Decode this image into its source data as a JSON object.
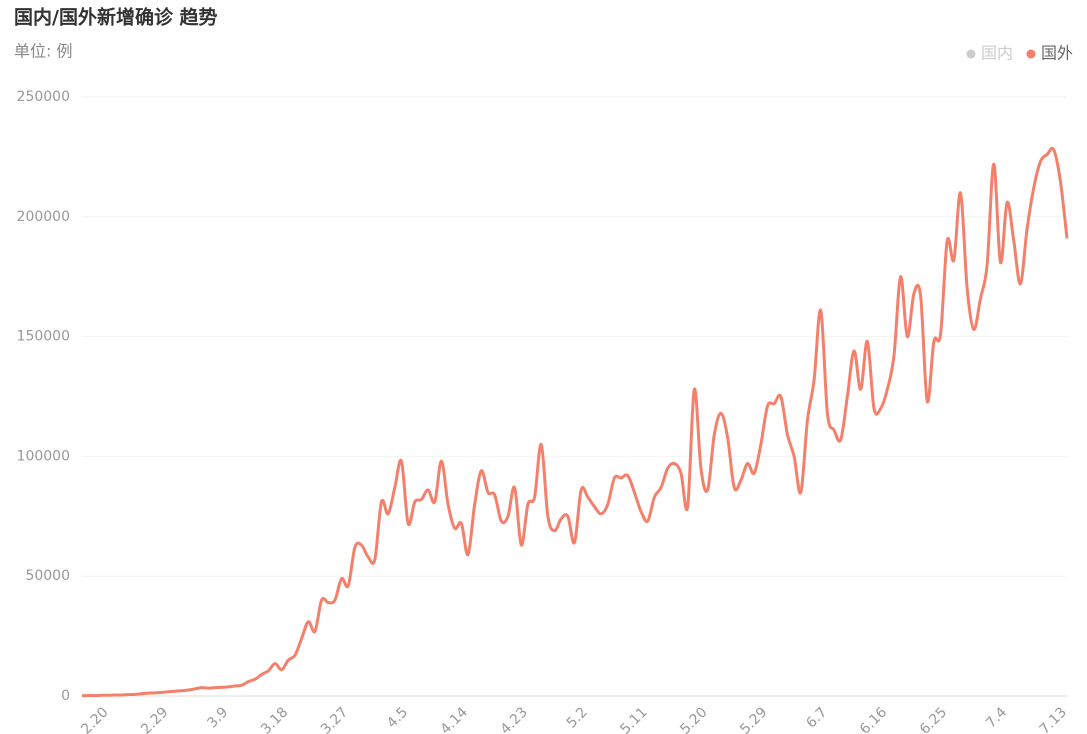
{
  "chart_data": {
    "type": "line",
    "title": "国内/国外新增确诊 趋势",
    "subtitle": "单位: 例",
    "categories": [
      null,
      null,
      null,
      "2.20",
      null,
      null,
      null,
      null,
      null,
      null,
      null,
      null,
      "2.29",
      null,
      null,
      null,
      null,
      null,
      null,
      null,
      null,
      "3.9",
      null,
      null,
      null,
      null,
      null,
      null,
      null,
      null,
      "3.18",
      null,
      null,
      null,
      null,
      null,
      null,
      null,
      null,
      "3.27",
      null,
      null,
      null,
      null,
      null,
      null,
      null,
      null,
      "4.5",
      null,
      null,
      null,
      null,
      null,
      null,
      null,
      null,
      "4.14",
      null,
      null,
      null,
      null,
      null,
      null,
      null,
      null,
      "4.23",
      null,
      null,
      null,
      null,
      null,
      null,
      null,
      null,
      "5.2",
      null,
      null,
      null,
      null,
      null,
      null,
      null,
      null,
      "5.11",
      null,
      null,
      null,
      null,
      null,
      null,
      null,
      null,
      "5.20",
      null,
      null,
      null,
      null,
      null,
      null,
      null,
      null,
      "5.29",
      null,
      null,
      null,
      null,
      null,
      null,
      null,
      null,
      "6.7",
      null,
      null,
      null,
      null,
      null,
      null,
      null,
      null,
      "6.16",
      null,
      null,
      null,
      null,
      null,
      null,
      null,
      null,
      "6.25",
      null,
      null,
      null,
      null,
      null,
      null,
      null,
      null,
      "7.4",
      null,
      null,
      null,
      null,
      null,
      null,
      null,
      null,
      "7.13",
      null
    ],
    "series": [
      {
        "name": "国内",
        "color": "#cccccc",
        "visible": false,
        "values": [
          null,
          null,
          null,
          null,
          null,
          null,
          null,
          null,
          null,
          null,
          null,
          null,
          null,
          null,
          null,
          null,
          null,
          null,
          null,
          null,
          null,
          null,
          null,
          null,
          null,
          null,
          null,
          null,
          null,
          null,
          null,
          null,
          null,
          null,
          null,
          null,
          null,
          null,
          null,
          null,
          null,
          null,
          null,
          null,
          null,
          null,
          null,
          null,
          null,
          null,
          null,
          null,
          null,
          null,
          null,
          null,
          null,
          null,
          null,
          null,
          null,
          null,
          null,
          null,
          null,
          null,
          null,
          null,
          null,
          null,
          null,
          null,
          null,
          null,
          null,
          null,
          null,
          null,
          null,
          null,
          null,
          null,
          null,
          null,
          null,
          null,
          null,
          null,
          null,
          null,
          null,
          null,
          null,
          null,
          null,
          null,
          null,
          null,
          null,
          null,
          null,
          null,
          null,
          null,
          null,
          null,
          null,
          null,
          null,
          null,
          null,
          null,
          null,
          null,
          null,
          null,
          null,
          null,
          null,
          null,
          null,
          null,
          null,
          null,
          null,
          null,
          null,
          null,
          null,
          null,
          null,
          null,
          null,
          null,
          null,
          null,
          null,
          null,
          null,
          null,
          null,
          null,
          null,
          null,
          null,
          null,
          null,
          null,
          null
        ]
      },
      {
        "name": "国外",
        "color": "#f4806c",
        "visible": true,
        "values": [
          100,
          200,
          150,
          300,
          300,
          400,
          400,
          600,
          700,
          1000,
          1200,
          1300,
          1500,
          1800,
          2000,
          2200,
          2500,
          3000,
          3500,
          3300,
          3500,
          3600,
          3800,
          4200,
          4500,
          6000,
          7000,
          9000,
          10500,
          13500,
          11000,
          15000,
          17000,
          24000,
          31000,
          27000,
          40000,
          39000,
          40000,
          49000,
          46000,
          62000,
          63000,
          58000,
          57000,
          81000,
          76000,
          87000,
          98000,
          72000,
          81000,
          82000,
          86000,
          81000,
          98000,
          80000,
          70000,
          72000,
          59000,
          80000,
          94000,
          85000,
          84000,
          73000,
          75000,
          87000,
          63000,
          80000,
          83000,
          105000,
          75000,
          69000,
          74000,
          75000,
          64000,
          86000,
          83000,
          79000,
          76000,
          80000,
          91000,
          91000,
          92000,
          85000,
          77000,
          73000,
          83000,
          87000,
          95000,
          97000,
          93000,
          79000,
          128000,
          95000,
          86000,
          109000,
          118000,
          108000,
          87000,
          90000,
          97000,
          93000,
          105000,
          121000,
          122000,
          125000,
          109000,
          100000,
          85000,
          115000,
          132000,
          161000,
          118000,
          111000,
          107000,
          125000,
          144000,
          128000,
          148000,
          120000,
          120000,
          128000,
          142000,
          175000,
          150000,
          168000,
          167000,
          123000,
          148000,
          151000,
          190000,
          182000,
          210000,
          170000,
          153000,
          166000,
          180000,
          222000,
          181000,
          206000,
          190000,
          172000,
          195000,
          212000,
          223000,
          226000,
          228000,
          215000,
          191000
        ]
      }
    ],
    "ylim": [
      0,
      250000
    ],
    "yticks": [
      0,
      50000,
      100000,
      150000,
      200000,
      250000
    ],
    "grid": true,
    "smooth": true,
    "legend_position": "top-right"
  }
}
